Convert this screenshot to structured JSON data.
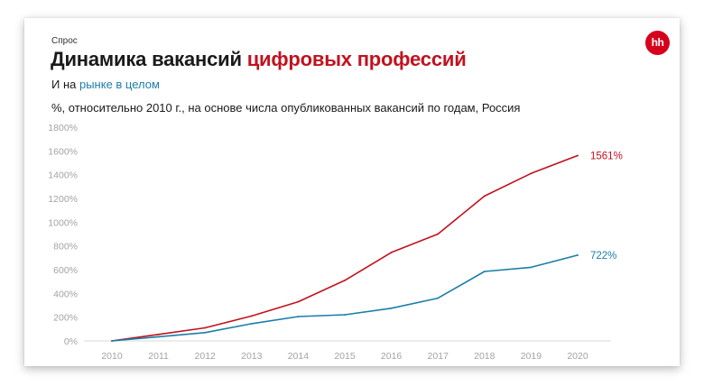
{
  "header": {
    "kicker": "Спрос",
    "title_main": "Динамика вакансий ",
    "title_accent": "цифровых профессий",
    "subtitle_main": "И на ",
    "subtitle_accent": "рынке в целом",
    "note": "%, относительно 2010 г., на основе числа опубликованных вакансий по годам, Россия",
    "logo_text": "hh"
  },
  "chart_data": {
    "type": "line",
    "title": "Динамика вакансий цифровых профессий",
    "xlabel": "",
    "ylabel": "",
    "x": [
      "2010",
      "2011",
      "2012",
      "2013",
      "2014",
      "2015",
      "2016",
      "2017",
      "2018",
      "2019",
      "2020"
    ],
    "ylim": [
      0,
      1800
    ],
    "yticks": [
      0,
      200,
      400,
      600,
      800,
      1000,
      1200,
      1400,
      1600,
      1800
    ],
    "ytick_labels": [
      "0%",
      "200%",
      "400%",
      "600%",
      "800%",
      "1000%",
      "1200%",
      "1400%",
      "1600%",
      "1800%"
    ],
    "grid": false,
    "series": [
      {
        "key": "digital",
        "color": "#c1121f",
        "values": [
          0,
          55,
          110,
          210,
          330,
          510,
          745,
          900,
          1220,
          1410,
          1561
        ],
        "end_label": "1561%"
      },
      {
        "key": "market",
        "color": "#1b7ea8",
        "values": [
          0,
          35,
          70,
          145,
          205,
          220,
          275,
          360,
          585,
          620,
          722
        ],
        "end_label": "722%"
      }
    ]
  }
}
